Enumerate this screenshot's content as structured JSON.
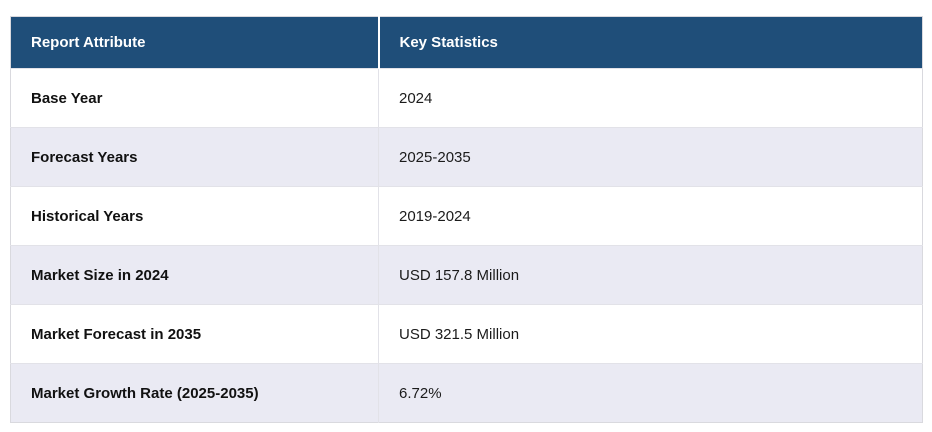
{
  "table": {
    "headers": [
      "Report Attribute",
      "Key Statistics"
    ],
    "rows": [
      {
        "attribute": "Base Year",
        "value": "2024"
      },
      {
        "attribute": "Forecast Years",
        "value": "2025-2035"
      },
      {
        "attribute": "Historical Years",
        "value": "2019-2024"
      },
      {
        "attribute": "Market Size in 2024",
        "value": "USD 157.8 Million"
      },
      {
        "attribute": "Market Forecast in 2035",
        "value": "USD 321.5 Million"
      },
      {
        "attribute": "Market Growth Rate (2025-2035)",
        "value": "6.72%"
      }
    ]
  },
  "colors": {
    "header_bg": "#1f4e79",
    "header_text": "#ffffff",
    "alt_row_bg": "#eaeaf3",
    "border": "#e2e2e8"
  },
  "chart_data": {
    "type": "table",
    "title": "",
    "columns": [
      "Report Attribute",
      "Key Statistics"
    ],
    "rows": [
      [
        "Base Year",
        "2024"
      ],
      [
        "Forecast Years",
        "2025-2035"
      ],
      [
        "Historical Years",
        "2019-2024"
      ],
      [
        "Market Size in 2024",
        "USD 157.8 Million"
      ],
      [
        "Market Forecast in 2035",
        "USD 321.5 Million"
      ],
      [
        "Market Growth Rate (2025-2035)",
        "6.72%"
      ]
    ]
  }
}
